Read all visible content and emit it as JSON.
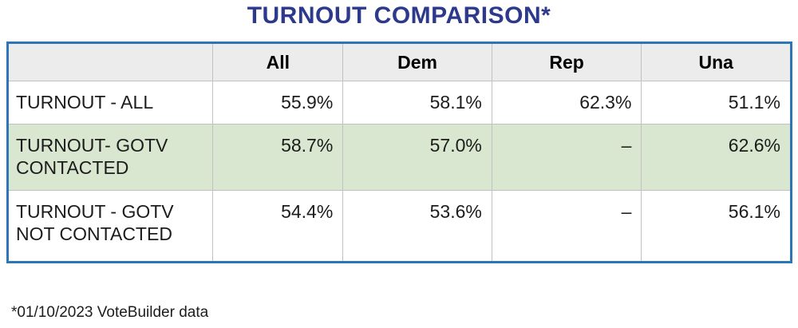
{
  "title": "TURNOUT COMPARISON*",
  "footnote": "*01/10/2023 VoteBuilder data",
  "colors": {
    "title_text": "#2d3a8c",
    "table_outer_border": "#2e75b6",
    "cell_border": "#c1c1c1",
    "header_row_bg": "#ececec",
    "highlight_row_bg": "#d9e6d0",
    "body_text": "#1c1c1c"
  },
  "table": {
    "columns": [
      "",
      "All",
      "Dem",
      "Rep",
      "Una"
    ],
    "rows": [
      {
        "label": "TURNOUT - ALL",
        "values": [
          "55.9%",
          "58.1%",
          "62.3%",
          "51.1%"
        ],
        "highlight": false
      },
      {
        "label": "TURNOUT- GOTV CONTACTED",
        "values": [
          "58.7%",
          "57.0%",
          "–",
          "62.6%"
        ],
        "highlight": true
      },
      {
        "label": "TURNOUT - GOTV NOT CONTACTED",
        "values": [
          "54.4%",
          "53.6%",
          "–",
          "56.1%"
        ],
        "highlight": false
      }
    ]
  },
  "chart_data": {
    "type": "table",
    "title": "TURNOUT COMPARISON*",
    "columns": [
      "All",
      "Dem",
      "Rep",
      "Una"
    ],
    "rows": [
      {
        "label": "TURNOUT - ALL",
        "values": [
          55.9,
          58.1,
          62.3,
          51.1
        ]
      },
      {
        "label": "TURNOUT- GOTV CONTACTED",
        "values": [
          58.7,
          57.0,
          null,
          62.6
        ]
      },
      {
        "label": "TURNOUT - GOTV NOT CONTACTED",
        "values": [
          54.4,
          53.6,
          null,
          56.1
        ]
      }
    ],
    "units": "percent",
    "missing_value_marker": "–",
    "highlighted_row_index": 1,
    "footnote": "*01/10/2023 VoteBuilder data"
  }
}
